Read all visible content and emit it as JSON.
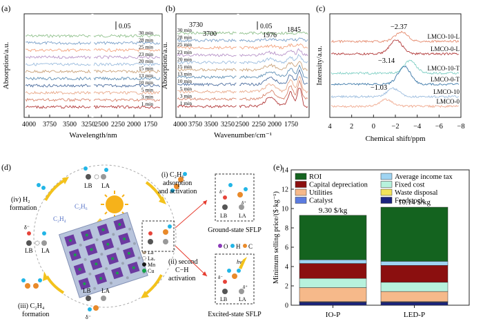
{
  "panels": {
    "a": {
      "label": "(a)",
      "ylabel": "Absorption/a.u.",
      "xlabel": "Wavelength/nm",
      "scale_bar": "0.05",
      "xticks": [
        "4000",
        "3750",
        "3500",
        "3250",
        "2500",
        "2250",
        "2000",
        "1750"
      ],
      "series": [
        "30 min",
        "28 min",
        "25 min",
        "23 min",
        "20 min",
        "15 min",
        "13 min",
        "10 min",
        "5 min",
        "3 min",
        "1 min"
      ],
      "colors": [
        "#8fc08b",
        "#7aa0c9",
        "#f3a27c",
        "#b894c9",
        "#9bbcde",
        "#c9a27a",
        "#5f8fb5",
        "#4e6fa0",
        "#e9a98a",
        "#d8846c",
        "#b23a3a"
      ]
    },
    "b": {
      "label": "(b)",
      "ylabel": "Absorption/a.u.",
      "xlabel": "Wavenumber/cm⁻¹",
      "scale_bar": "0.05",
      "annotations": [
        "3730",
        "3700",
        "1976",
        "1845"
      ],
      "xticks": [
        "4000",
        "3750",
        "3500",
        "3250",
        "2500",
        "2250",
        "2000",
        "1750"
      ],
      "series": [
        "30 min",
        "28 min",
        "25 min",
        "23 min",
        "20 min",
        "15 min",
        "13 min",
        "10 min",
        "5 min",
        "3 min",
        "1 min"
      ],
      "colors": [
        "#8fc08b",
        "#7aa0c9",
        "#f3a27c",
        "#b894c9",
        "#9bbcde",
        "#c9a27a",
        "#5f8fb5",
        "#4e6fa0",
        "#e9a98a",
        "#d8846c",
        "#b23a3a"
      ]
    },
    "c": {
      "label": "(c)",
      "ylabel": "Intensity/a.u.",
      "xlabel": "Chemical shift/ppm",
      "xticks": [
        "4",
        "2",
        "0",
        "−2",
        "−4",
        "−6",
        "−8"
      ],
      "peak_labels": [
        "−2.37",
        "−3.14",
        "−1.03"
      ],
      "series": [
        "LMCO-10-L",
        "LMCO-0-L",
        "LMCO-10-T",
        "LMCO-0-T",
        "LMCO-10",
        "LMCO-0"
      ],
      "colors": [
        "#e58a6d",
        "#b23a3a",
        "#7fcfc4",
        "#3c78a8",
        "#9bbcde",
        "#f0a98e"
      ]
    },
    "d": {
      "label": "(d)",
      "steps": {
        "i_line1": "(i) C₂H₆",
        "i_line2": "adsorption",
        "i_line3": "and activation",
        "ii_line1": "(ii) second",
        "ii_line2": "C−H",
        "ii_line3": "activation",
        "iii_line1": "(iii) C₂H₄",
        "iii_line2": "formation",
        "iv_line1": "(iv) H₂",
        "iv_line2": "formation"
      },
      "site_lb": "LB",
      "site_la": "LA",
      "c2h6": "C₂H₆",
      "c2h4": "C₂H₄",
      "delta_minus": "δ⁻",
      "delta_plus": "δ⁺",
      "legend": [
        "O",
        "Oᵥ",
        "La",
        "Laᵥ",
        "Mn",
        "Cu"
      ],
      "ground_state": "Ground-state SFLP",
      "excited_state": "Excited-state SFLP",
      "atom_legend": [
        "O",
        "H",
        "C"
      ],
      "hv": "hν"
    },
    "e": {
      "label": "(e)",
      "chart_data": {
        "type": "bar",
        "stacked": true,
        "categories": [
          "IO-P",
          "LED-P"
        ],
        "ylabel": "Minimum selling price/($·kg⁻¹)",
        "ylim": [
          0,
          14
        ],
        "yticks": [
          0,
          2,
          4,
          6,
          8,
          10,
          12,
          14
        ],
        "totals_labels": [
          "9.30 $/kg",
          "10.14 $/kg"
        ],
        "totals": [
          9.3,
          10.14
        ],
        "series": [
          {
            "name": "Feedstock",
            "color": "#1a237e",
            "values": [
              0.3,
              0.3
            ]
          },
          {
            "name": "Waste disposal",
            "color": "#f2e35a",
            "values": [
              0.02,
              0.02
            ]
          },
          {
            "name": "Catalyst",
            "color": "#5b7be0",
            "values": [
              0.05,
              0.05
            ]
          },
          {
            "name": "Utilities",
            "color": "#f6b98a",
            "values": [
              1.45,
              1.05
            ]
          },
          {
            "name": "Fixed cost",
            "color": "#b7f2dd",
            "values": [
              0.95,
              0.95
            ]
          },
          {
            "name": "Capital depreciation",
            "color": "#8b0f0f",
            "values": [
              1.55,
              1.75
            ]
          },
          {
            "name": "Average income tax",
            "color": "#9fd4f2",
            "values": [
              0.38,
              0.42
            ]
          },
          {
            "name": "ROI",
            "color": "#14631f",
            "values": [
              4.6,
              5.6
            ]
          }
        ]
      }
    }
  }
}
